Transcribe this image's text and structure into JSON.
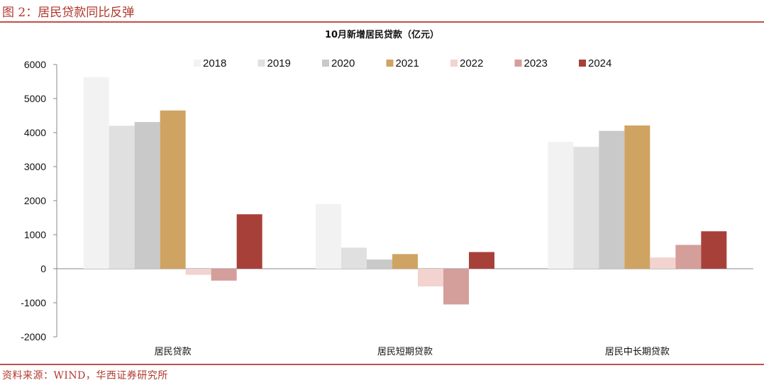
{
  "figure": {
    "title": "图 2：居民贷款同比反弹",
    "source": "资料来源：WIND，华西证券研究所"
  },
  "chart_data": {
    "type": "bar",
    "title": "10月新增居民贷款（亿元）",
    "categories": [
      "居民贷款",
      "居民短期贷款",
      "居民中长期贷款"
    ],
    "series": [
      {
        "name": "2018",
        "color": "#f2f2f2",
        "values": [
          5630,
          1900,
          3730
        ]
      },
      {
        "name": "2019",
        "color": "#e0e0e0",
        "values": [
          4200,
          620,
          3580
        ]
      },
      {
        "name": "2020",
        "color": "#c9c9c9",
        "values": [
          4310,
          270,
          4050
        ]
      },
      {
        "name": "2021",
        "color": "#cfa462",
        "values": [
          4650,
          430,
          4210
        ]
      },
      {
        "name": "2022",
        "color": "#f2d3cf",
        "values": [
          -180,
          -520,
          330
        ]
      },
      {
        "name": "2023",
        "color": "#d49e9a",
        "values": [
          -350,
          -1050,
          700
        ]
      },
      {
        "name": "2024",
        "color": "#a8403a",
        "values": [
          1600,
          490,
          1100
        ]
      }
    ],
    "yticks": [
      "6000",
      "5000",
      "4000",
      "3000",
      "2000",
      "1000",
      "0",
      "-1000",
      "-2000"
    ],
    "ylim": [
      -2000,
      6000
    ],
    "legend_position": "top",
    "grid": false
  }
}
